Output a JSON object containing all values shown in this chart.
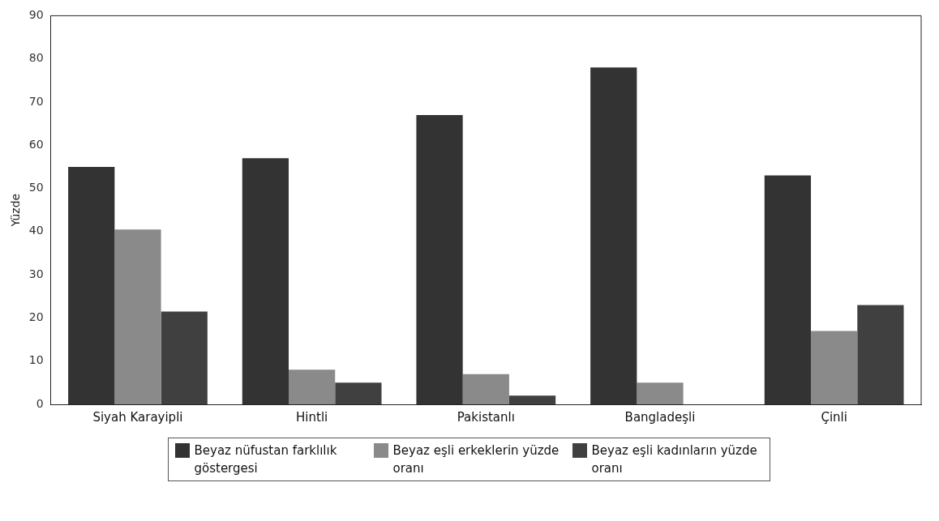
{
  "chart_data": {
    "type": "bar",
    "ylabel": "Yüzde",
    "categories": [
      "Siyah Karayipli",
      "Hintli",
      "Pakistanlı",
      "Bangladeşli",
      "Çinli"
    ],
    "series": [
      {
        "name": "Beyaz nüfustan farklılık göstergesi",
        "color": "#333333",
        "values": [
          55,
          57,
          67,
          78,
          53
        ]
      },
      {
        "name": "Beyaz eşli erkeklerin yüzde oranı",
        "color": "#8a8a8a",
        "values": [
          40.5,
          8,
          7,
          5,
          17
        ]
      },
      {
        "name": "Beyaz eşli kadınların yüzde oranı",
        "color": "#404040",
        "values": [
          21.5,
          5,
          2,
          null,
          23
        ]
      }
    ],
    "ylim": [
      0,
      90
    ],
    "yticks": [
      0,
      10,
      20,
      30,
      40,
      50,
      60,
      70,
      80,
      90
    ],
    "grid": false,
    "legend": "bottom"
  }
}
